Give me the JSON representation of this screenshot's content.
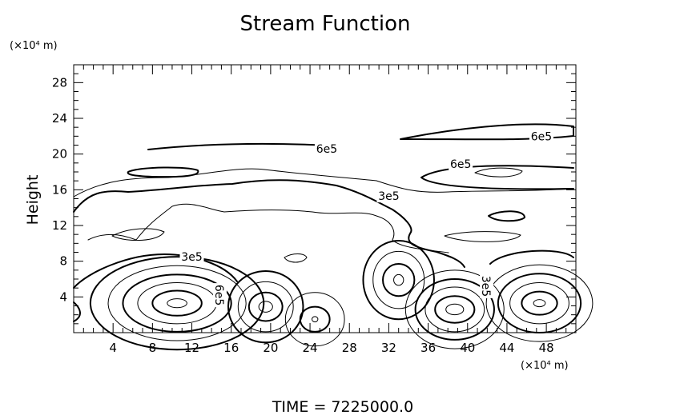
{
  "chart_data": {
    "type": "contour",
    "title": "Stream Function",
    "ylabel": "Height",
    "y_unit_label": "(×10⁴ m)",
    "x_unit_label": "(×10⁴ m)",
    "xlim": [
      0,
      51
    ],
    "ylim": [
      0,
      30
    ],
    "x_ticks": [
      4,
      8,
      12,
      16,
      20,
      24,
      28,
      32,
      36,
      40,
      44,
      48
    ],
    "y_ticks": [
      4,
      8,
      12,
      16,
      20,
      24,
      28
    ],
    "contour_labels": [
      {
        "text": "6e5",
        "x": 47.5,
        "y": 22.0
      },
      {
        "text": "6e5",
        "x": 25.7,
        "y": 20.6
      },
      {
        "text": "6e5",
        "x": 39.3,
        "y": 18.9
      },
      {
        "text": "3e5",
        "x": 32.0,
        "y": 15.3
      },
      {
        "text": "3e5",
        "x": 12.0,
        "y": 8.5
      },
      {
        "text": "6e5",
        "x": 14.8,
        "y": 4.2,
        "rotate": 90
      },
      {
        "text": "3e5",
        "x": 41.9,
        "y": 5.2,
        "rotate": 90
      }
    ],
    "cells": [
      {
        "cx": 10.5,
        "cy": 3.3,
        "rings": [
          [
            1.0,
            0.5
          ],
          [
            2.5,
            1.4
          ],
          [
            4.0,
            2.3
          ],
          [
            5.5,
            3.2
          ],
          [
            7.0,
            4.2
          ],
          [
            8.8,
            5.2
          ]
        ]
      },
      {
        "cx": 19.5,
        "cy": 2.9,
        "rings": [
          [
            0.7,
            0.6
          ],
          [
            1.7,
            1.6
          ],
          [
            2.8,
            2.8
          ],
          [
            3.8,
            4.0
          ]
        ]
      },
      {
        "cx": 24.5,
        "cy": 1.5,
        "rings": [
          [
            0.3,
            0.3
          ],
          [
            1.5,
            1.4
          ],
          [
            3.0,
            3.0
          ]
        ]
      },
      {
        "cx": 33.0,
        "cy": 5.9,
        "rings": [
          [
            0.5,
            0.6
          ],
          [
            1.6,
            1.8
          ],
          [
            2.6,
            3.2
          ],
          [
            3.6,
            4.4
          ]
        ]
      },
      {
        "cx": 38.7,
        "cy": 2.6,
        "rings": [
          [
            0.9,
            0.6
          ],
          [
            2.0,
            1.5
          ],
          [
            3.0,
            2.5
          ],
          [
            4.0,
            3.4
          ],
          [
            5.0,
            4.4
          ]
        ]
      },
      {
        "cx": 47.3,
        "cy": 3.3,
        "rings": [
          [
            0.6,
            0.4
          ],
          [
            1.8,
            1.3
          ],
          [
            3.0,
            2.3
          ],
          [
            4.2,
            3.3
          ],
          [
            5.4,
            4.3
          ]
        ]
      }
    ],
    "footer": "TIME  =  7225000.0"
  }
}
